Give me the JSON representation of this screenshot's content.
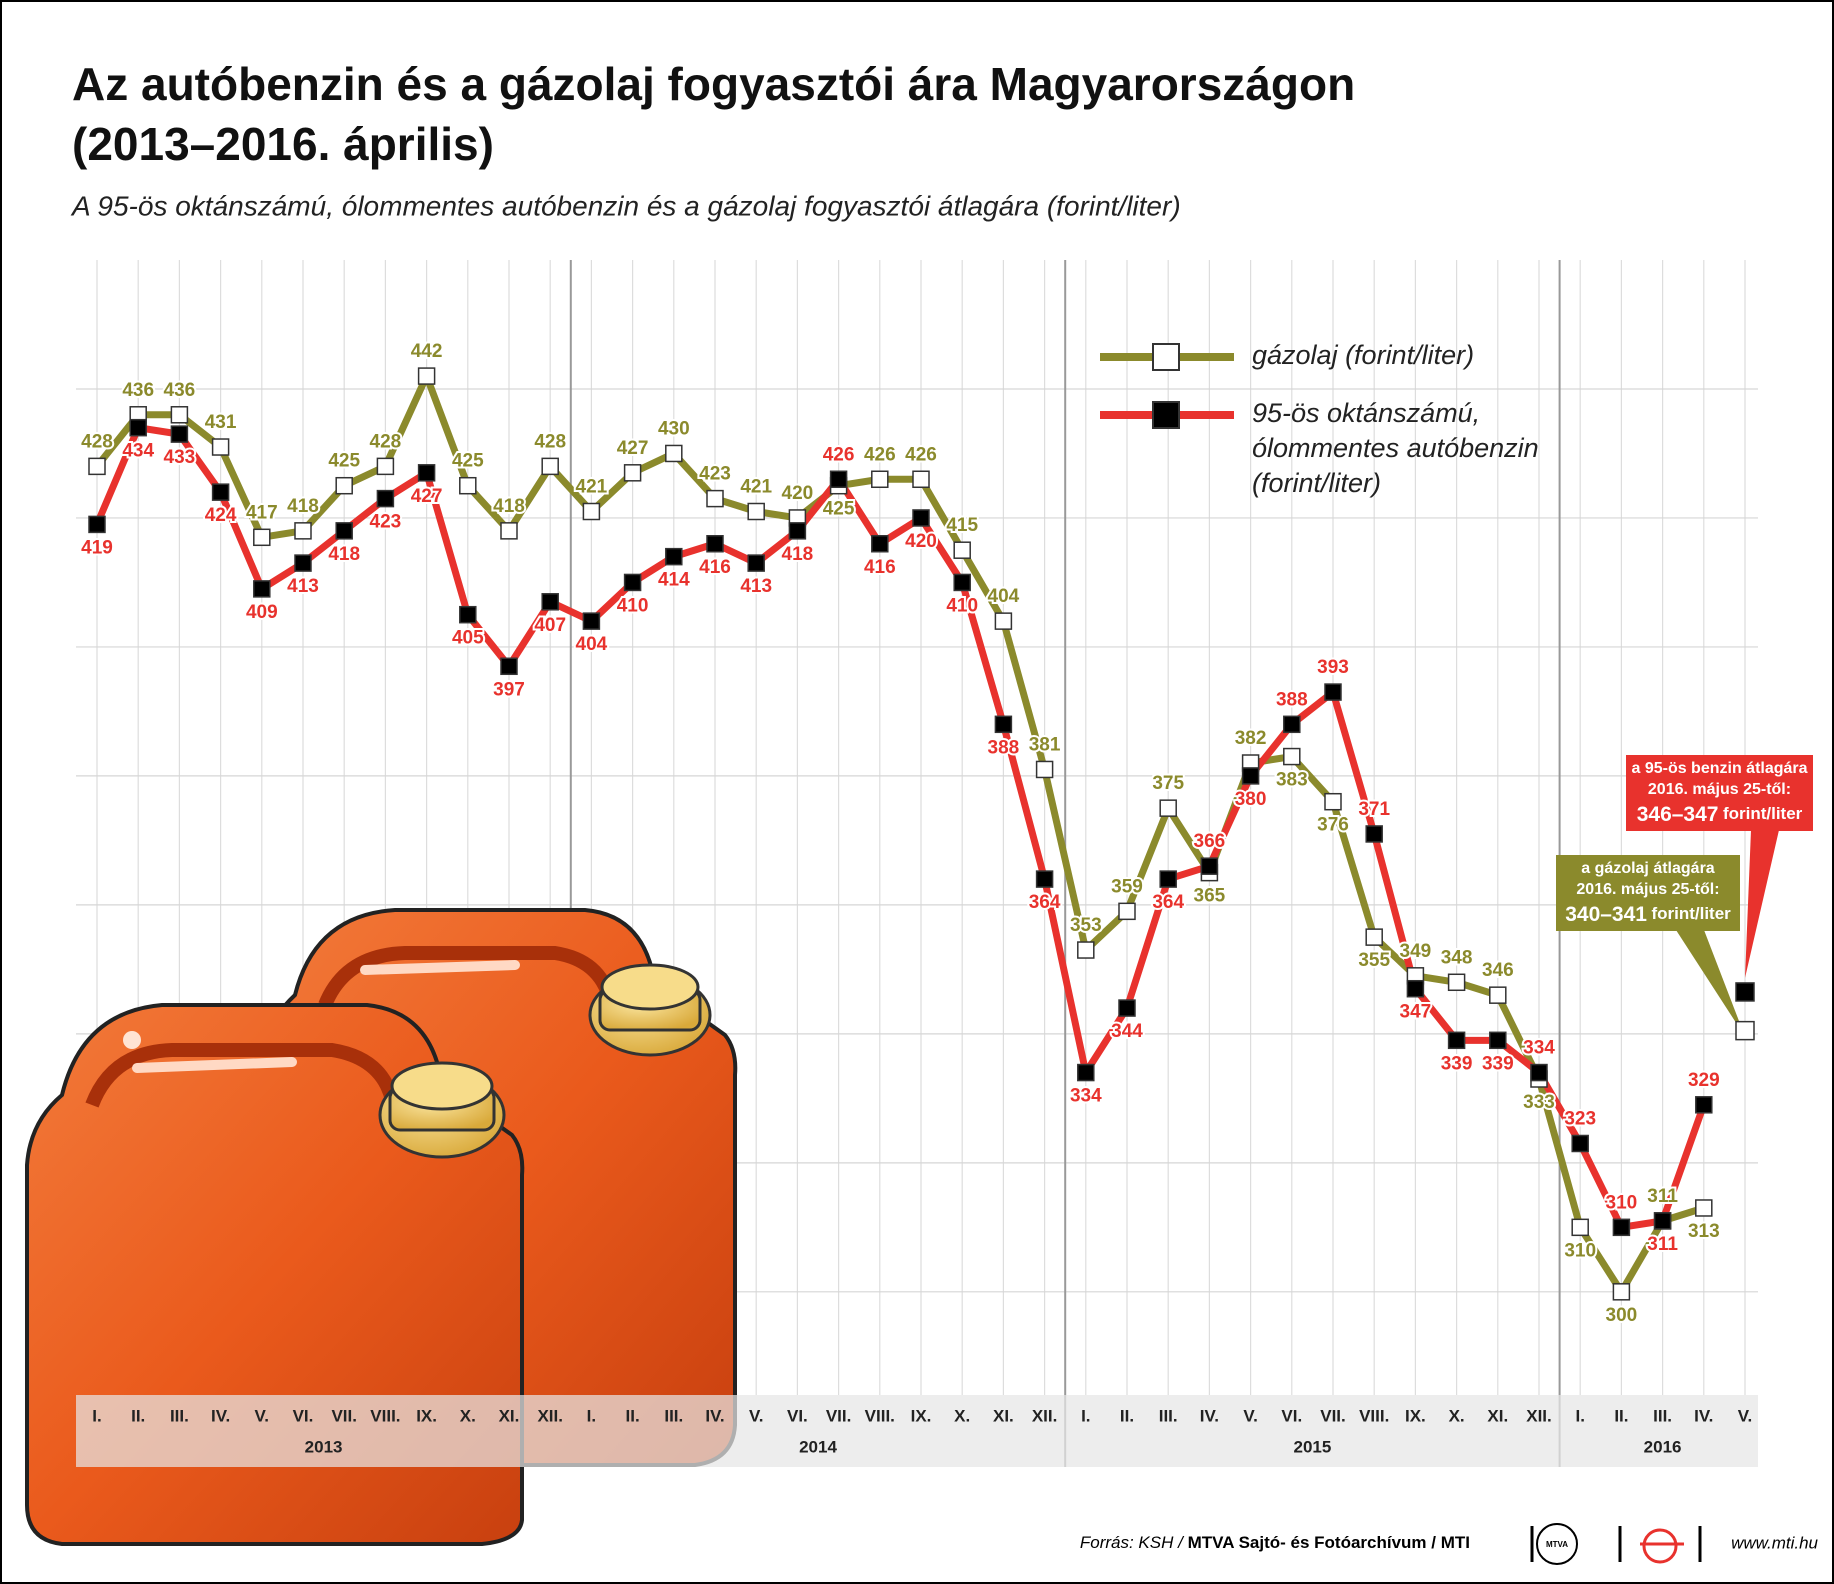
{
  "chart_data": {
    "type": "line",
    "title": [
      "Az autóbenzin és a gázolaj fogyasztói ára Magyarországon",
      "(2013–2016. április)"
    ],
    "subtitle": "A 95-ös oktánszámú, ólommentes autóbenzin és a gázolaj fogyasztói átlagára (forint/liter)",
    "categories": [
      "I.",
      "II.",
      "III.",
      "IV.",
      "V.",
      "VI.",
      "VII.",
      "VIII.",
      "IX.",
      "X.",
      "XI.",
      "XII.",
      "I.",
      "II.",
      "III.",
      "IV.",
      "V.",
      "VI.",
      "VII.",
      "VIII.",
      "IX.",
      "X.",
      "XI.",
      "XII.",
      "I.",
      "II.",
      "III.",
      "IV.",
      "V.",
      "VI.",
      "VII.",
      "VIII.",
      "IX.",
      "X.",
      "XI.",
      "XII.",
      "I.",
      "II.",
      "III.",
      "IV.",
      "V."
    ],
    "years": [
      "2013",
      "2014",
      "2015",
      "2016"
    ],
    "ylim": [
      284,
      460
    ],
    "ygridlines": [
      300,
      320,
      340,
      360,
      380,
      400,
      420,
      440
    ],
    "series": [
      {
        "name": [
          "gázolaj (forint/liter)"
        ],
        "color": "#8b8a2c",
        "marker_fill": "#ffffff",
        "values": [
          428,
          436,
          436,
          431,
          417,
          418,
          425,
          428,
          442,
          425,
          418,
          428,
          421,
          427,
          430,
          423,
          421,
          420,
          425,
          426,
          426,
          415,
          404,
          381,
          353,
          359,
          375,
          365,
          382,
          383,
          376,
          355,
          349,
          348,
          346,
          333,
          310,
          300,
          311,
          313,
          null
        ]
      },
      {
        "name": [
          "95-ös oktánszámú,",
          "ólommentes autóbenzin",
          "(forint/liter)"
        ],
        "color": "#e8322d",
        "marker_fill": "#000000",
        "values": [
          419,
          434,
          433,
          424,
          409,
          413,
          418,
          423,
          427,
          405,
          397,
          407,
          404,
          410,
          414,
          416,
          413,
          418,
          426,
          416,
          420,
          410,
          388,
          364,
          334,
          344,
          364,
          366,
          380,
          388,
          393,
          371,
          347,
          339,
          339,
          334,
          323,
          310,
          311,
          329,
          null
        ]
      }
    ],
    "annotations": [
      {
        "series": 1,
        "lines": [
          "a 95-ös benzin átlagára",
          "2016. május 25-től:"
        ],
        "range": "346–347",
        "unit": "forint/liter",
        "color": "#e8322d",
        "marker_value": 346.5
      },
      {
        "series": 0,
        "lines": [
          "a gázolaj átlagára",
          "2016. május 25-től:"
        ],
        "range": "340–341",
        "unit": "forint/liter",
        "color": "#8b8a2c",
        "marker_value": 340.5
      }
    ],
    "source": [
      "Forrás: KSH /",
      "MTVA Sajtó- és Fotóarchívum / MTI"
    ],
    "logo": "MTVA",
    "url": "www.mti.hu"
  }
}
